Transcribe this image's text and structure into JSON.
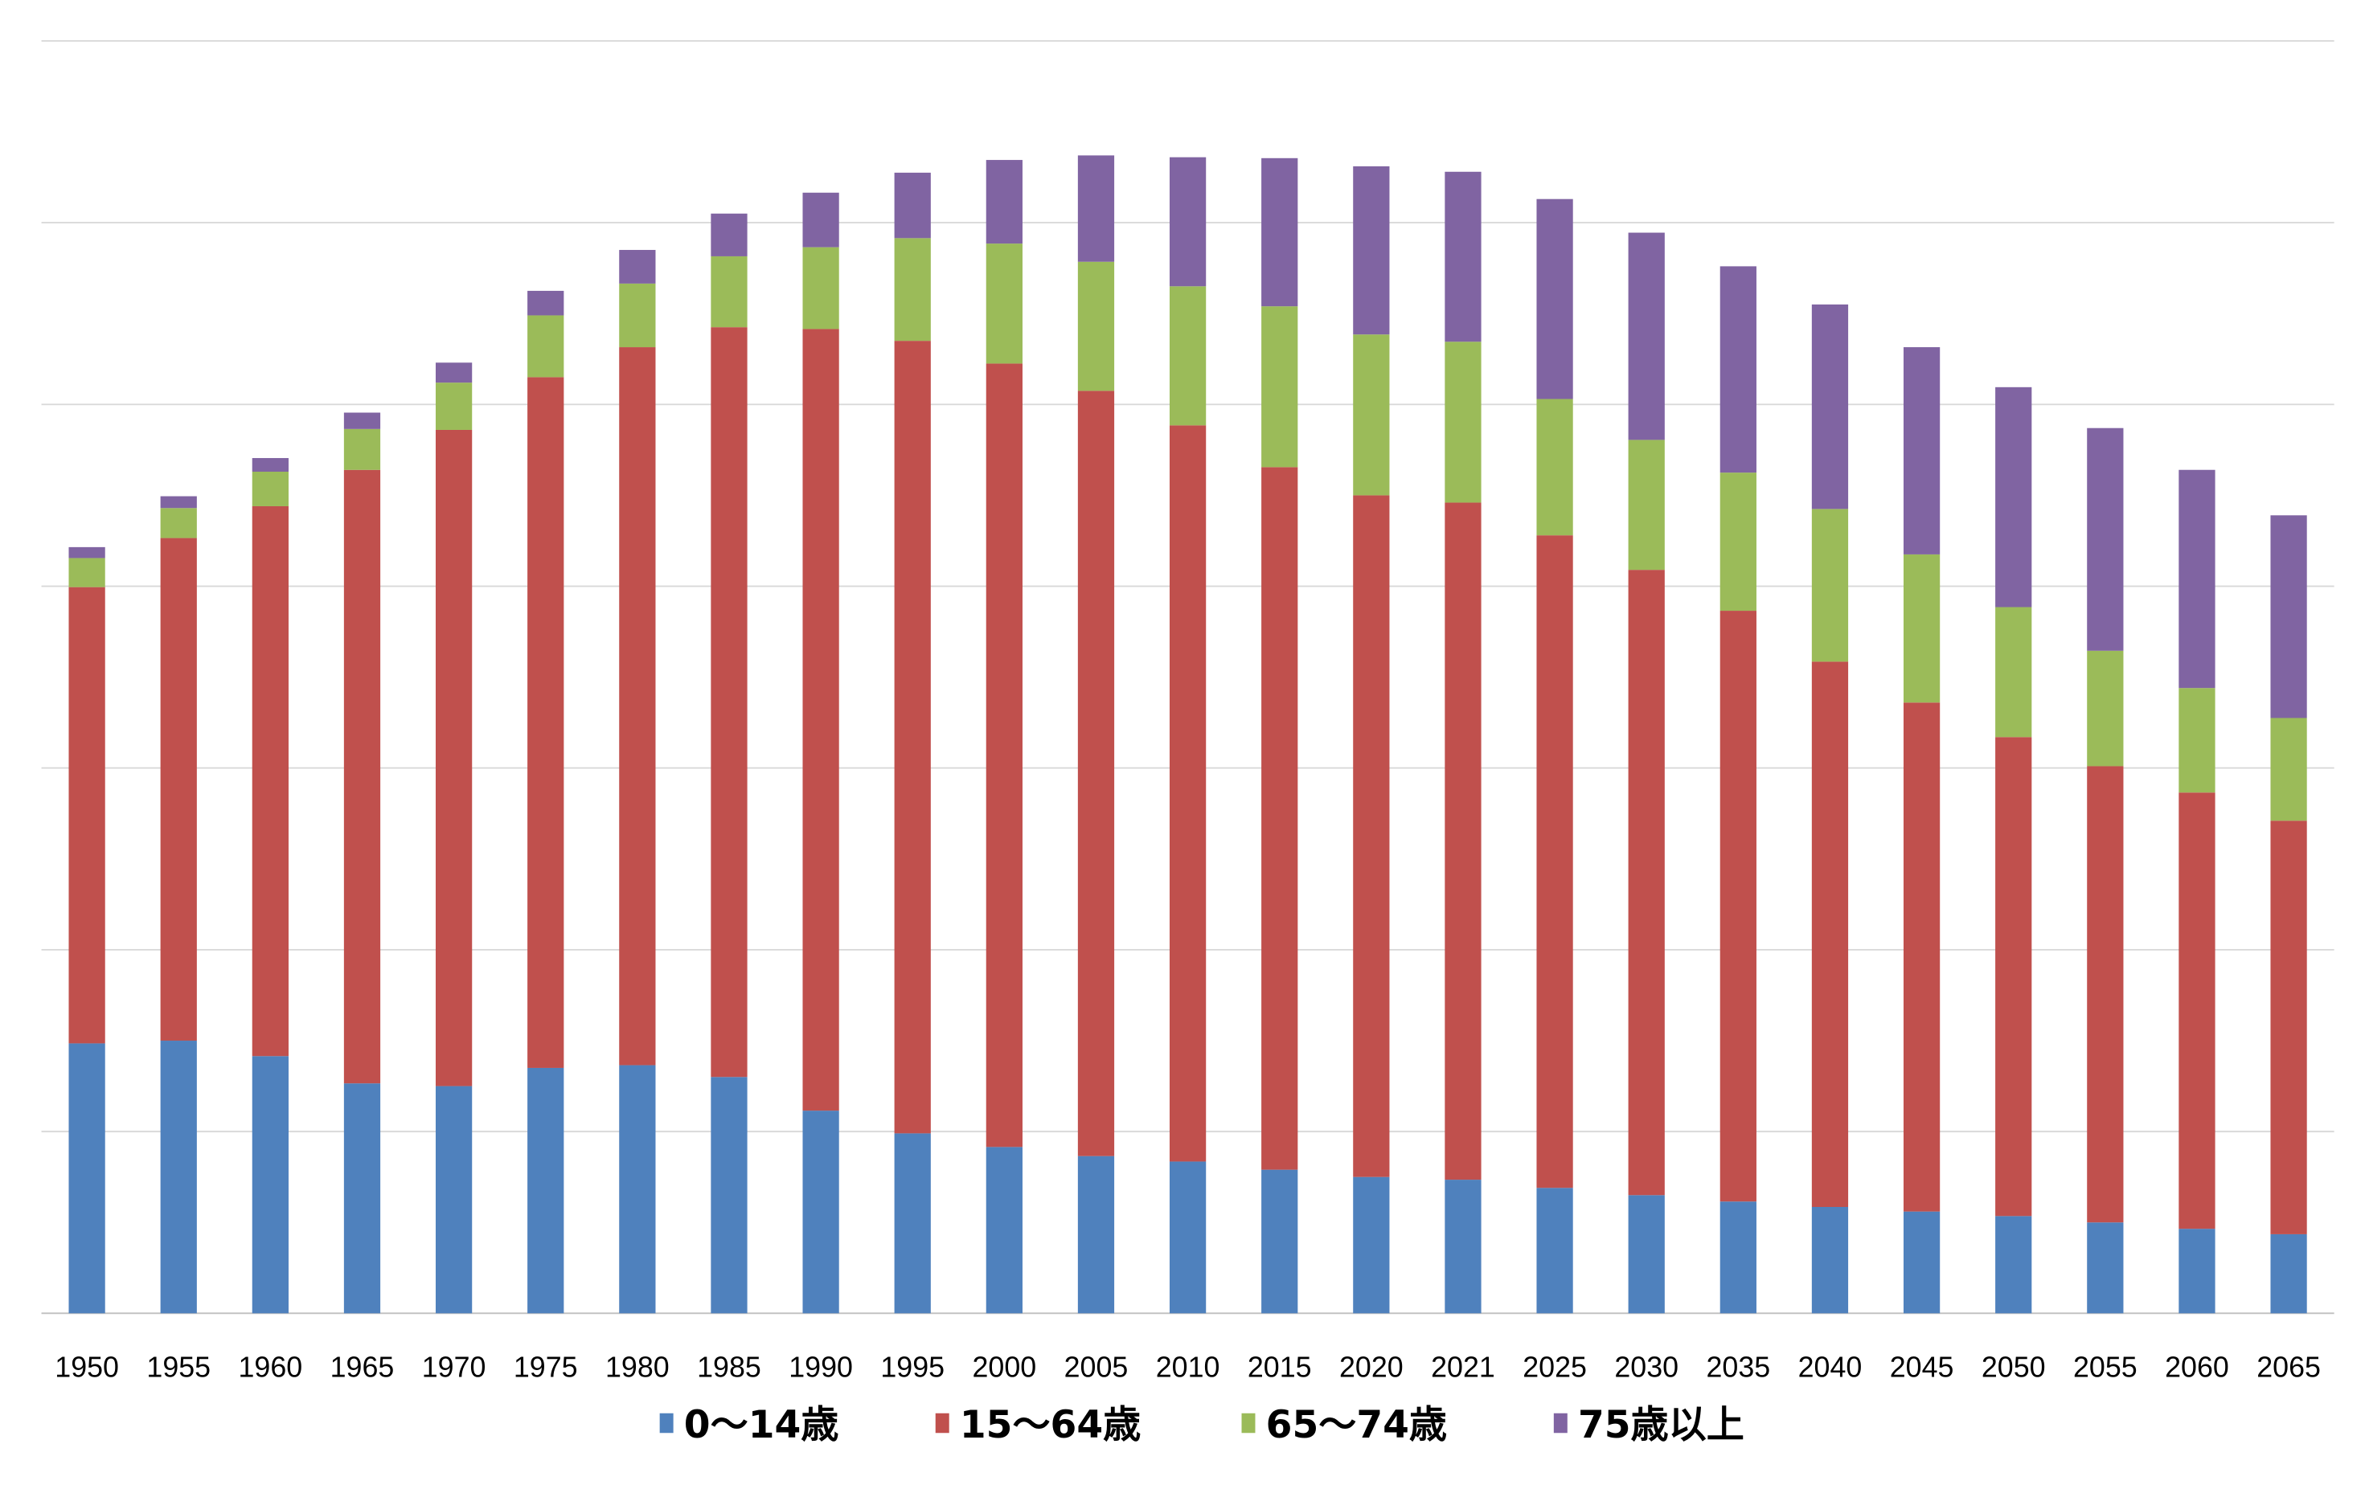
{
  "chart_data": {
    "type": "bar",
    "stacked": true,
    "title": "",
    "xlabel": "",
    "ylabel": "",
    "unit_assumed": "millions of people",
    "ylim": [
      0,
      140
    ],
    "ytick_step": 20,
    "y_tick_labels_shown": false,
    "grid": true,
    "legend_position": "bottom",
    "categories": [
      "1950",
      "1955",
      "1960",
      "1965",
      "1970",
      "1975",
      "1980",
      "1985",
      "1990",
      "1995",
      "2000",
      "2005",
      "2010",
      "2015",
      "2020",
      "2021",
      "2025",
      "2030",
      "2035",
      "2040",
      "2045",
      "2050",
      "2055",
      "2060",
      "2065"
    ],
    "series": [
      {
        "name": "0～14歳",
        "color": "#4F81BD",
        "values": [
          29.7,
          30.0,
          28.3,
          25.3,
          25.0,
          27.0,
          27.3,
          26.0,
          22.3,
          19.8,
          18.3,
          17.3,
          16.7,
          15.8,
          15.0,
          14.7,
          13.8,
          13.0,
          12.3,
          11.7,
          11.2,
          10.7,
          10.0,
          9.3,
          8.7
        ]
      },
      {
        "name": "15～64歳",
        "color": "#C0504D",
        "values": [
          50.2,
          55.3,
          60.5,
          67.5,
          72.2,
          76.0,
          79.0,
          82.5,
          86.0,
          87.2,
          86.2,
          84.2,
          81.0,
          77.3,
          75.0,
          74.5,
          71.8,
          68.8,
          65.0,
          60.0,
          56.0,
          52.7,
          50.2,
          48.0,
          45.5
        ]
      },
      {
        "name": "65～74歳",
        "color": "#9BBB59",
        "values": [
          3.2,
          3.3,
          3.8,
          4.5,
          5.2,
          6.8,
          7.0,
          7.8,
          9.0,
          11.3,
          13.2,
          14.2,
          15.3,
          17.7,
          17.7,
          17.7,
          15.0,
          14.3,
          15.2,
          16.8,
          16.3,
          14.3,
          12.7,
          11.5,
          11.3
        ]
      },
      {
        "name": "75歳以上",
        "color": "#8064A2",
        "values": [
          1.2,
          1.3,
          1.5,
          1.8,
          2.2,
          2.7,
          3.7,
          4.7,
          6.0,
          7.2,
          9.2,
          11.7,
          14.2,
          16.3,
          18.5,
          18.7,
          22.0,
          22.8,
          22.7,
          22.5,
          22.8,
          24.2,
          24.5,
          24.0,
          22.3
        ]
      }
    ]
  }
}
